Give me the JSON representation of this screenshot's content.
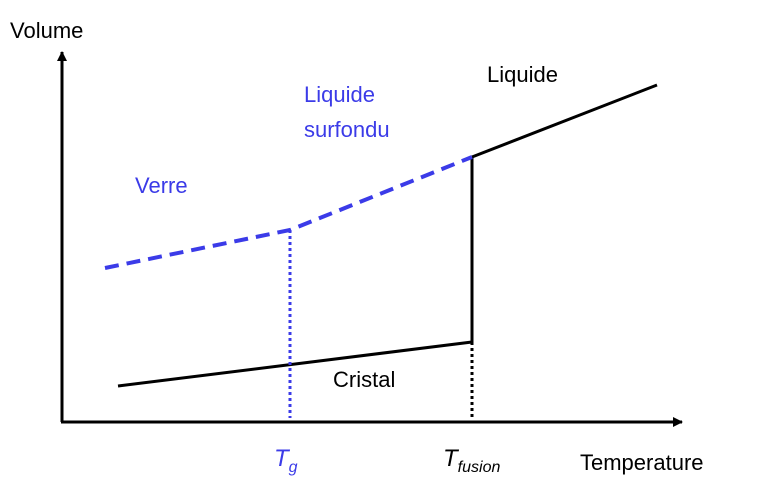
{
  "axes": {
    "y_label": "Volume",
    "x_label": "Temperature"
  },
  "regions": {
    "liquid": "Liquide",
    "supercooled": [
      "Liquide",
      "surfondu"
    ],
    "glass": "Verre",
    "crystal": "Cristal"
  },
  "markers": [
    {
      "symbol": "T",
      "subscript": "g"
    },
    {
      "symbol": "T",
      "subscript": "fusion"
    }
  ]
}
